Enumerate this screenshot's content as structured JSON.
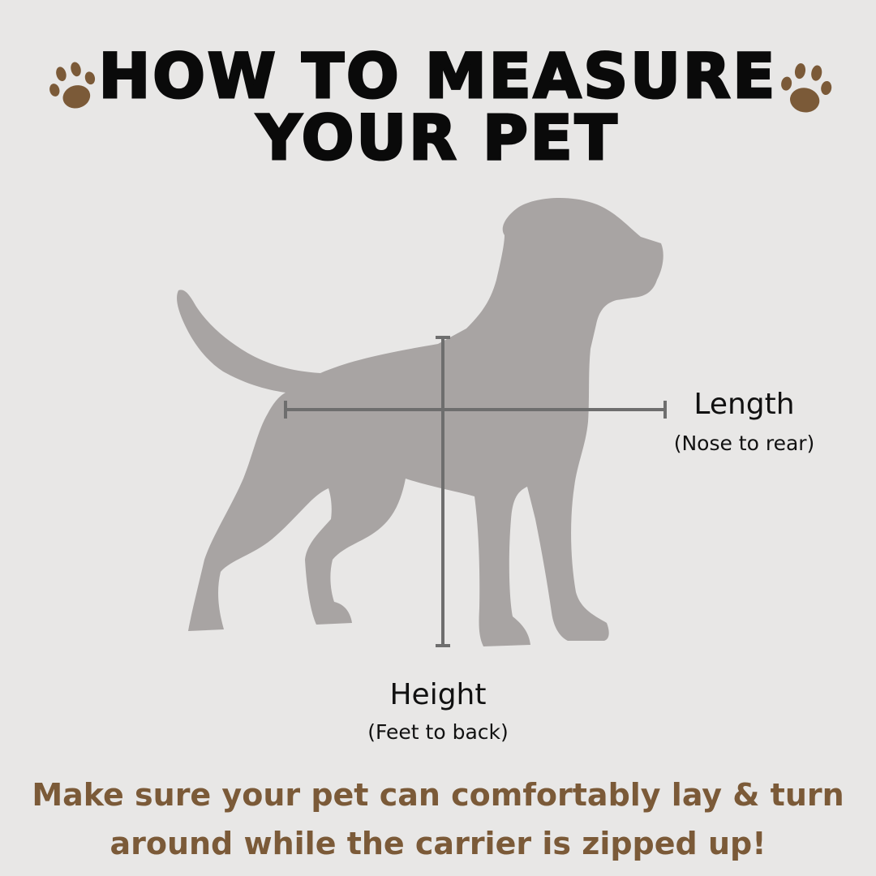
{
  "title": {
    "line1": "HOW TO MEASURE",
    "line2": "YOUR PET"
  },
  "labels": {
    "length": "Length",
    "length_note": "(Nose to rear)",
    "height": "Height",
    "height_note": "(Feet to back)"
  },
  "note": {
    "line1": "Make sure your pet can comfortably lay & turn",
    "line2": "around while the carrier is zipped up!"
  },
  "icons": {
    "decoration": "paw-print-icon"
  },
  "colors": {
    "background": "#e8e7e6",
    "dog": "#a8a4a3",
    "measure_line": "#6e6e6e",
    "accent_brown": "#7b5a38",
    "title": "#0a0a0a"
  }
}
